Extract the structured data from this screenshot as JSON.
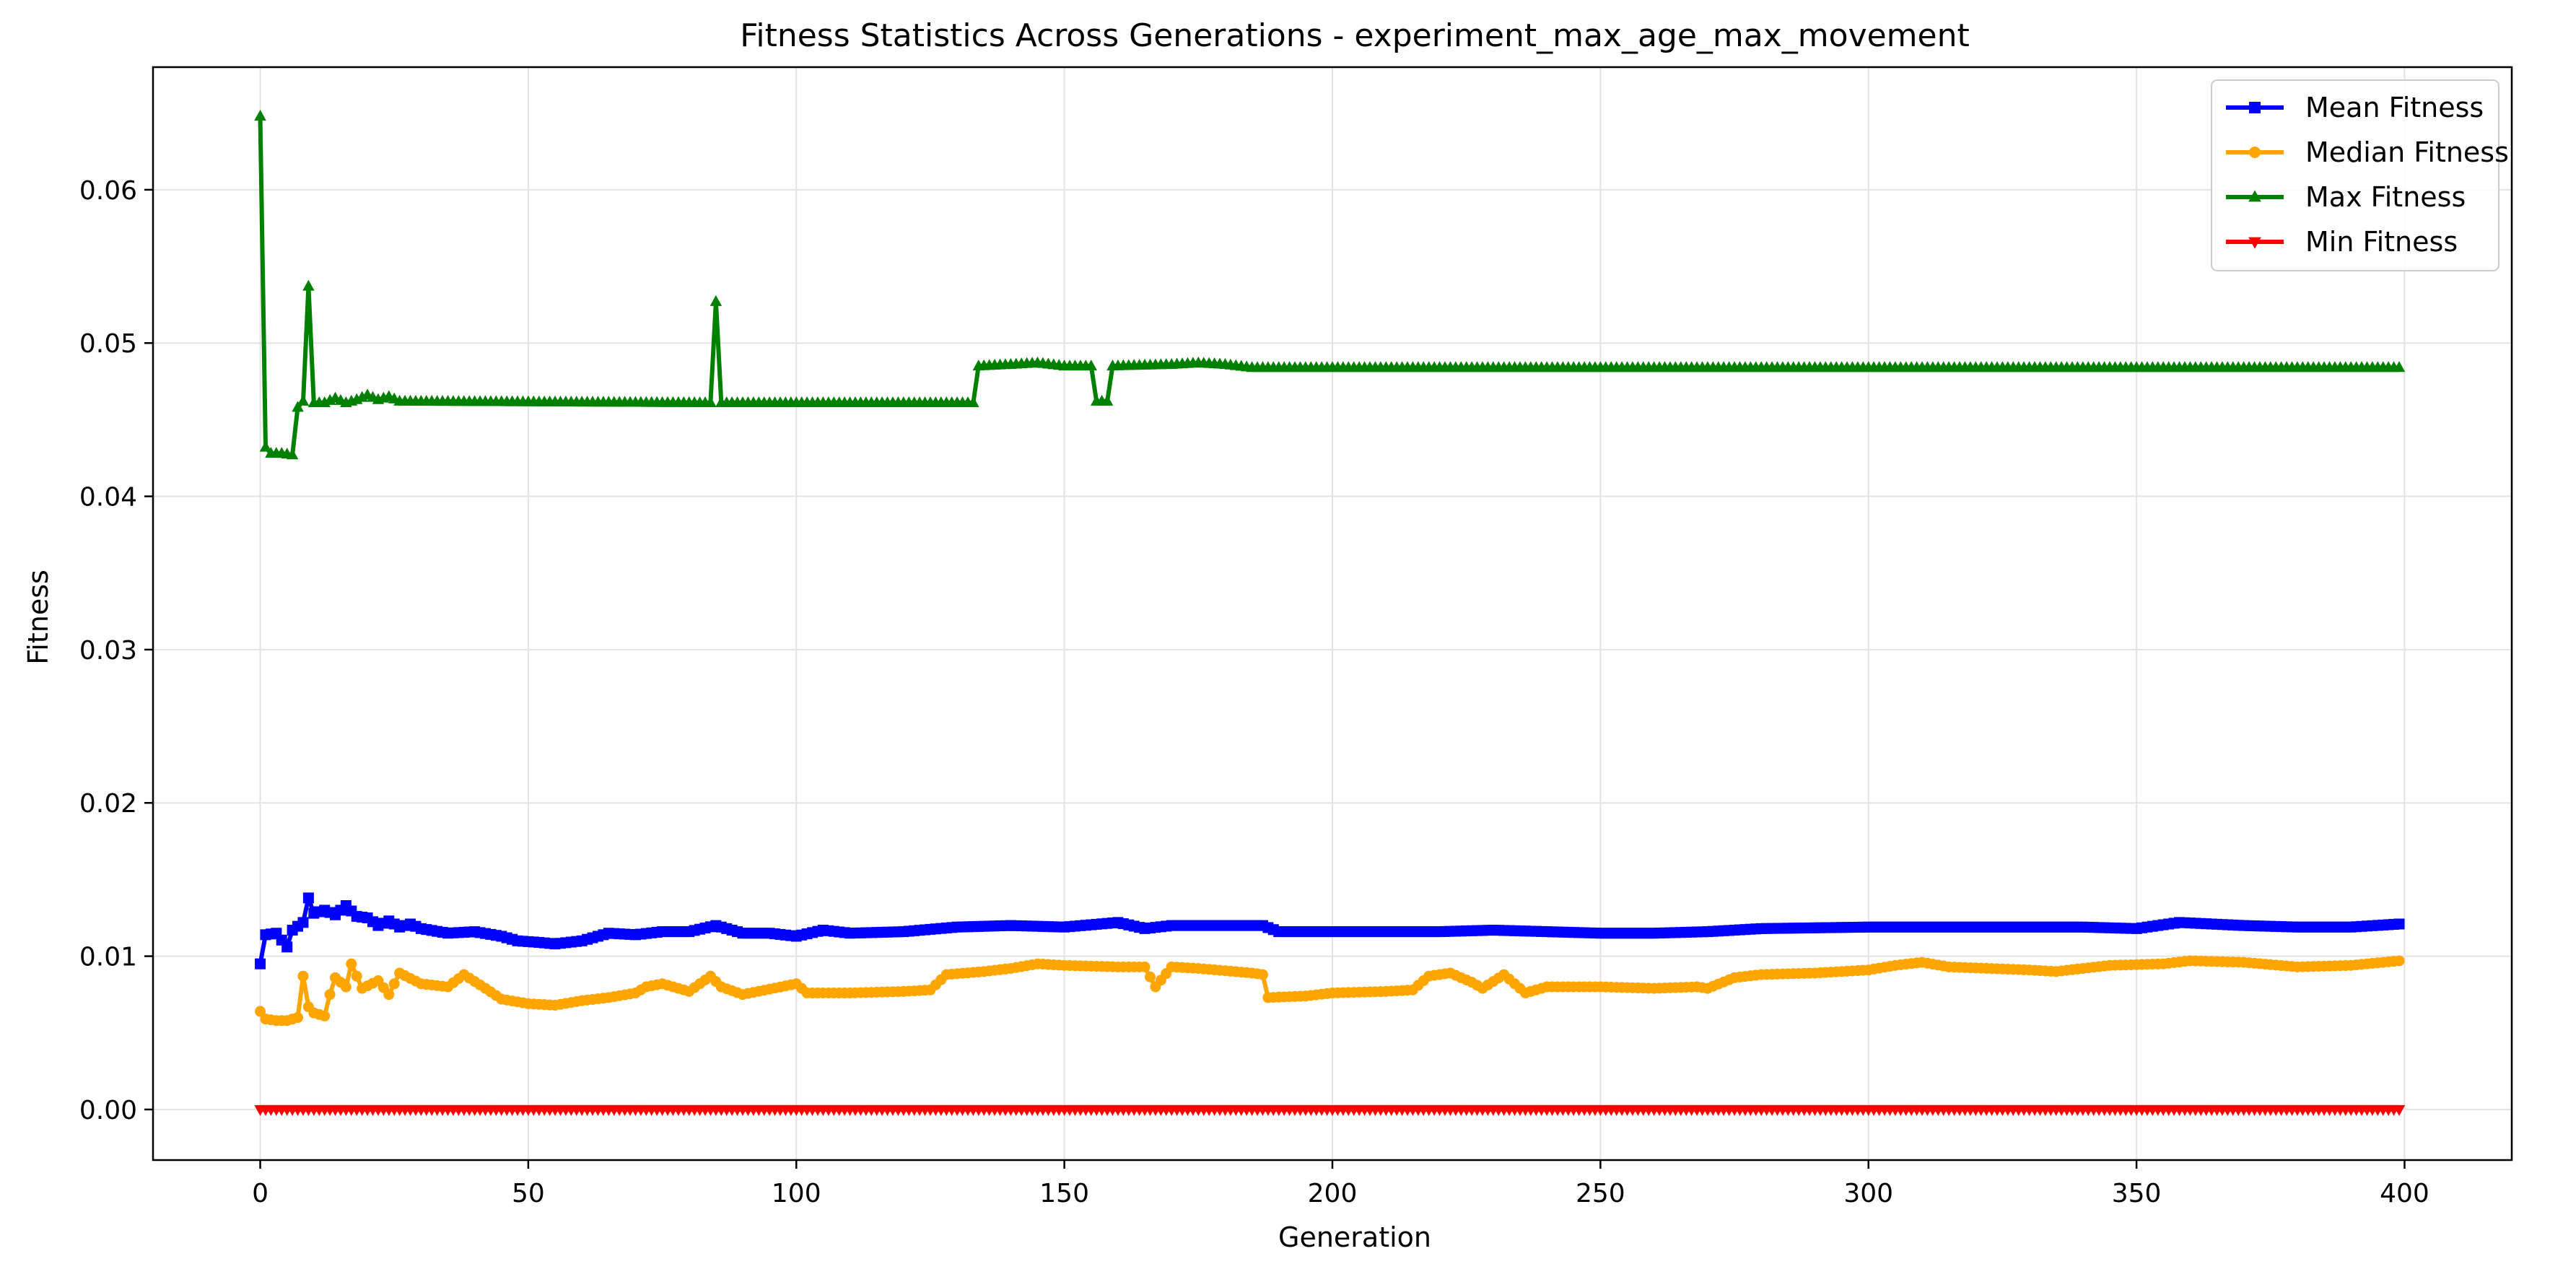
{
  "chart_data": {
    "type": "line",
    "title": "Fitness Statistics Across Generations - experiment_max_age_max_movement",
    "xlabel": "Generation",
    "ylabel": "Fitness",
    "xlim": [
      -20,
      420
    ],
    "ylim": [
      -0.0033,
      0.068
    ],
    "xticks": [
      0,
      50,
      100,
      150,
      200,
      250,
      300,
      350,
      400
    ],
    "yticks": [
      0.0,
      0.01,
      0.02,
      0.03,
      0.04,
      0.05,
      0.06
    ],
    "ytick_labels": [
      "0.00",
      "0.01",
      "0.02",
      "0.03",
      "0.04",
      "0.05",
      "0.06"
    ],
    "grid": true,
    "legend_position": "top-right",
    "series": [
      {
        "name": "Mean Fitness",
        "color": "#0000ff",
        "marker": "square",
        "points": [
          [
            0,
            0.0095
          ],
          [
            1,
            0.0114
          ],
          [
            3,
            0.0115
          ],
          [
            5,
            0.0106
          ],
          [
            6,
            0.0117
          ],
          [
            8,
            0.0122
          ],
          [
            9,
            0.0138
          ],
          [
            10,
            0.0128
          ],
          [
            12,
            0.013
          ],
          [
            14,
            0.0127
          ],
          [
            16,
            0.0133
          ],
          [
            18,
            0.0126
          ],
          [
            20,
            0.0125
          ],
          [
            22,
            0.012
          ],
          [
            24,
            0.0123
          ],
          [
            26,
            0.0119
          ],
          [
            28,
            0.0121
          ],
          [
            30,
            0.0118
          ],
          [
            35,
            0.0115
          ],
          [
            40,
            0.0116
          ],
          [
            45,
            0.0113
          ],
          [
            48,
            0.011
          ],
          [
            52,
            0.0109
          ],
          [
            55,
            0.0108
          ],
          [
            60,
            0.011
          ],
          [
            65,
            0.0115
          ],
          [
            70,
            0.0114
          ],
          [
            75,
            0.0116
          ],
          [
            80,
            0.0116
          ],
          [
            85,
            0.012
          ],
          [
            90,
            0.0115
          ],
          [
            95,
            0.0115
          ],
          [
            100,
            0.0113
          ],
          [
            105,
            0.0117
          ],
          [
            110,
            0.0115
          ],
          [
            120,
            0.0116
          ],
          [
            130,
            0.0119
          ],
          [
            140,
            0.012
          ],
          [
            150,
            0.0119
          ],
          [
            160,
            0.0122
          ],
          [
            165,
            0.0118
          ],
          [
            170,
            0.012
          ],
          [
            180,
            0.012
          ],
          [
            187,
            0.012
          ],
          [
            190,
            0.0116
          ],
          [
            200,
            0.0116
          ],
          [
            220,
            0.0116
          ],
          [
            230,
            0.0117
          ],
          [
            240,
            0.0116
          ],
          [
            250,
            0.0115
          ],
          [
            260,
            0.0115
          ],
          [
            270,
            0.0116
          ],
          [
            280,
            0.0118
          ],
          [
            300,
            0.0119
          ],
          [
            320,
            0.0119
          ],
          [
            340,
            0.0119
          ],
          [
            350,
            0.0118
          ],
          [
            358,
            0.0122
          ],
          [
            370,
            0.012
          ],
          [
            380,
            0.0119
          ],
          [
            390,
            0.0119
          ],
          [
            399,
            0.0121
          ]
        ]
      },
      {
        "name": "Median Fitness",
        "color": "#ffa500",
        "marker": "circle",
        "points": [
          [
            0,
            0.0064
          ],
          [
            1,
            0.0059
          ],
          [
            3,
            0.0058
          ],
          [
            5,
            0.0058
          ],
          [
            7,
            0.006
          ],
          [
            8,
            0.0087
          ],
          [
            9,
            0.0067
          ],
          [
            10,
            0.0063
          ],
          [
            12,
            0.0061
          ],
          [
            13,
            0.0075
          ],
          [
            14,
            0.0086
          ],
          [
            16,
            0.008
          ],
          [
            17,
            0.0095
          ],
          [
            19,
            0.0079
          ],
          [
            22,
            0.0084
          ],
          [
            24,
            0.0075
          ],
          [
            26,
            0.0089
          ],
          [
            30,
            0.0082
          ],
          [
            35,
            0.008
          ],
          [
            38,
            0.0088
          ],
          [
            42,
            0.0079
          ],
          [
            45,
            0.0072
          ],
          [
            50,
            0.0069
          ],
          [
            55,
            0.0068
          ],
          [
            60,
            0.0071
          ],
          [
            65,
            0.0073
          ],
          [
            70,
            0.0076
          ],
          [
            72,
            0.008
          ],
          [
            75,
            0.0082
          ],
          [
            80,
            0.0077
          ],
          [
            84,
            0.0087
          ],
          [
            86,
            0.008
          ],
          [
            90,
            0.0075
          ],
          [
            100,
            0.0082
          ],
          [
            102,
            0.0076
          ],
          [
            110,
            0.0076
          ],
          [
            120,
            0.0077
          ],
          [
            125,
            0.0078
          ],
          [
            128,
            0.0088
          ],
          [
            135,
            0.009
          ],
          [
            140,
            0.0092
          ],
          [
            145,
            0.0095
          ],
          [
            150,
            0.0094
          ],
          [
            160,
            0.0093
          ],
          [
            165,
            0.0093
          ],
          [
            167,
            0.008
          ],
          [
            170,
            0.0093
          ],
          [
            175,
            0.0092
          ],
          [
            185,
            0.0089
          ],
          [
            187,
            0.0088
          ],
          [
            188,
            0.0073
          ],
          [
            195,
            0.0074
          ],
          [
            200,
            0.0076
          ],
          [
            210,
            0.0077
          ],
          [
            215,
            0.0078
          ],
          [
            218,
            0.0087
          ],
          [
            222,
            0.0089
          ],
          [
            226,
            0.0083
          ],
          [
            228,
            0.0079
          ],
          [
            232,
            0.0088
          ],
          [
            236,
            0.0076
          ],
          [
            240,
            0.008
          ],
          [
            250,
            0.008
          ],
          [
            260,
            0.0079
          ],
          [
            268,
            0.008
          ],
          [
            270,
            0.0079
          ],
          [
            275,
            0.0086
          ],
          [
            280,
            0.0088
          ],
          [
            290,
            0.0089
          ],
          [
            300,
            0.0091
          ],
          [
            305,
            0.0094
          ],
          [
            310,
            0.0096
          ],
          [
            315,
            0.0093
          ],
          [
            330,
            0.0091
          ],
          [
            335,
            0.009
          ],
          [
            345,
            0.0094
          ],
          [
            355,
            0.0095
          ],
          [
            360,
            0.0097
          ],
          [
            370,
            0.0096
          ],
          [
            380,
            0.0093
          ],
          [
            390,
            0.0094
          ],
          [
            399,
            0.0097
          ]
        ]
      },
      {
        "name": "Max Fitness",
        "color": "#008000",
        "marker": "triangle-up",
        "points": [
          [
            0,
            0.0648
          ],
          [
            1,
            0.0432
          ],
          [
            2,
            0.0428
          ],
          [
            4,
            0.0428
          ],
          [
            6,
            0.0427
          ],
          [
            7,
            0.0458
          ],
          [
            8,
            0.0462
          ],
          [
            9,
            0.0537
          ],
          [
            10,
            0.0461
          ],
          [
            12,
            0.0461
          ],
          [
            14,
            0.0464
          ],
          [
            16,
            0.0461
          ],
          [
            18,
            0.0463
          ],
          [
            20,
            0.0466
          ],
          [
            22,
            0.0463
          ],
          [
            24,
            0.0465
          ],
          [
            26,
            0.0462
          ],
          [
            28,
            0.0462
          ],
          [
            84,
            0.0461
          ],
          [
            85,
            0.0527
          ],
          [
            86,
            0.0461
          ],
          [
            133,
            0.0461
          ],
          [
            134,
            0.0485
          ],
          [
            140,
            0.0486
          ],
          [
            145,
            0.0487
          ],
          [
            150,
            0.0485
          ],
          [
            155,
            0.0485
          ],
          [
            156,
            0.0462
          ],
          [
            158,
            0.0462
          ],
          [
            159,
            0.0485
          ],
          [
            170,
            0.0486
          ],
          [
            175,
            0.0487
          ],
          [
            180,
            0.0486
          ],
          [
            185,
            0.0484
          ],
          [
            399,
            0.0484
          ]
        ]
      },
      {
        "name": "Min Fitness",
        "color": "#ff0000",
        "marker": "triangle-down",
        "points": [
          [
            0,
            0.0
          ],
          [
            399,
            0.0
          ]
        ]
      }
    ]
  }
}
